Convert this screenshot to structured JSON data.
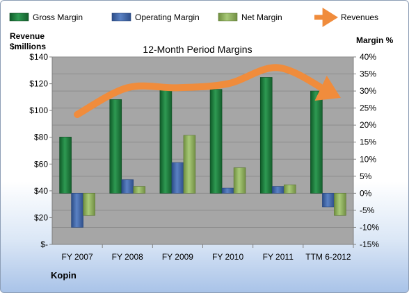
{
  "chart_data": {
    "type": "bar",
    "title": "12-Month Period Margins",
    "company": "Kopin",
    "categories": [
      "FY 2007",
      "FY 2008",
      "FY 2009",
      "FY 2010",
      "FY 2011",
      "TTM 6-2012"
    ],
    "series": [
      {
        "name": "Gross Margin",
        "axis": "right",
        "values": [
          16.5,
          27.5,
          31.0,
          30.5,
          34.0,
          30.0
        ]
      },
      {
        "name": "Operating Margin",
        "axis": "right",
        "values": [
          -10.0,
          4.0,
          9.0,
          1.5,
          2.0,
          -4.0
        ]
      },
      {
        "name": "Net Margin",
        "axis": "right",
        "values": [
          -6.5,
          2.0,
          17.0,
          7.5,
          2.5,
          -6.5
        ]
      },
      {
        "name": "Revenues",
        "type": "line",
        "axis": "left",
        "values": [
          97,
          117,
          117,
          120,
          132,
          114
        ]
      }
    ],
    "ylabel_left": [
      "Revenue",
      "$millions"
    ],
    "ylabel_right": "Margin %",
    "ylim_left": [
      0,
      140
    ],
    "ylim_right": [
      -15,
      40
    ],
    "yticks_left": [
      "$140",
      "$120",
      "$100",
      "$80",
      "$60",
      "$40",
      "$20",
      "$-"
    ],
    "yticks_right": [
      "40%",
      "35%",
      "30%",
      "25%",
      "20%",
      "15%",
      "10%",
      "5%",
      "0%",
      "-5%",
      "-10%",
      "-15%"
    ],
    "grid": true,
    "legend_position": "top",
    "colors": {
      "gross": "#1e7a3c",
      "operating": "#3f63a3",
      "net": "#8fb05a",
      "revenues": "#f08c3c",
      "plot_bg": "#a6a6a6"
    }
  }
}
